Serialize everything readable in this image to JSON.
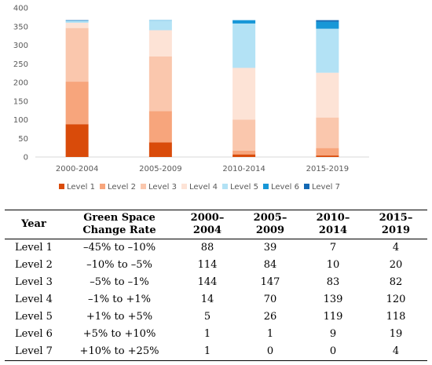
{
  "chart_data": {
    "type": "bar",
    "stacked": true,
    "categories": [
      "2000-2004",
      "2005-2009",
      "2010-2014",
      "2015-2019"
    ],
    "series": [
      {
        "name": "Level 1",
        "color": "#d94b0a",
        "values": [
          88,
          39,
          7,
          4
        ]
      },
      {
        "name": "Level 2",
        "color": "#f7a57c",
        "values": [
          114,
          84,
          10,
          20
        ]
      },
      {
        "name": "Level 3",
        "color": "#fac7ad",
        "values": [
          144,
          147,
          83,
          82
        ]
      },
      {
        "name": "Level 4",
        "color": "#fde3d6",
        "values": [
          14,
          70,
          139,
          120
        ]
      },
      {
        "name": "Level 5",
        "color": "#b3e2f5",
        "values": [
          5,
          26,
          119,
          118
        ]
      },
      {
        "name": "Level 6",
        "color": "#1797d7",
        "values": [
          1,
          1,
          9,
          19
        ]
      },
      {
        "name": "Level 7",
        "color": "#1368b3",
        "values": [
          1,
          0,
          0,
          4
        ]
      }
    ],
    "ylim": [
      0,
      400
    ],
    "yticks": [
      "0",
      "50",
      "100",
      "150",
      "200",
      "250",
      "300",
      "350",
      "400"
    ],
    "legend_position": "bottom"
  },
  "table": {
    "headers": [
      "Year",
      "Green Space Change Rate",
      "2000–2004",
      "2005–2009",
      "2010–2014",
      "2015–2019"
    ],
    "rows": [
      [
        "Level 1",
        "–45% to –10%",
        "88",
        "39",
        "7",
        "4"
      ],
      [
        "Level 2",
        "–10% to –5%",
        "114",
        "84",
        "10",
        "20"
      ],
      [
        "Level 3",
        "–5% to –1%",
        "144",
        "147",
        "83",
        "82"
      ],
      [
        "Level 4",
        "–1% to +1%",
        "14",
        "70",
        "139",
        "120"
      ],
      [
        "Level 5",
        "+1% to +5%",
        "5",
        "26",
        "119",
        "118"
      ],
      [
        "Level 6",
        "+5% to +10%",
        "1",
        "1",
        "9",
        "19"
      ],
      [
        "Level 7",
        "+10% to +25%",
        "1",
        "0",
        "0",
        "4"
      ]
    ]
  }
}
